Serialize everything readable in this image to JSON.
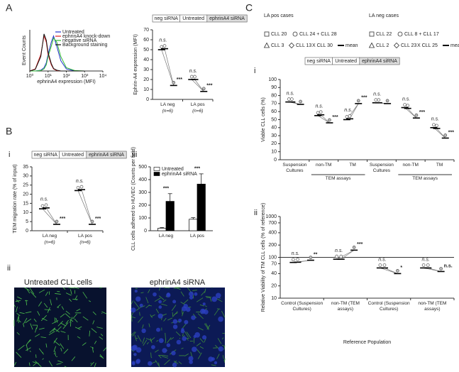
{
  "panel_labels": {
    "A": "A",
    "B": "B",
    "C": "C",
    "B_i": "i",
    "B_ii": "ii",
    "B_iii": "iii",
    "C_i": "i",
    "C_ii": "ii"
  },
  "image_captions": [
    "Untreated CLL cells",
    "ephrinA4 siRNA"
  ],
  "case_legends": [
    {
      "title": "LA pos cases",
      "cases": [
        "CLL 20",
        "CLL 24 + CLL 28",
        "CLL 3",
        "CLL 13",
        "X CLL 30",
        "mean"
      ]
    },
    {
      "title": "LA neg cases",
      "cases": [
        "CLL 22",
        "CLL 8 + CLL 17",
        "CLL 2",
        "CLL 23",
        "X CLL 25",
        "mean"
      ]
    }
  ],
  "chart_data": [
    {
      "type": "line",
      "x_label": "ephrinA4 expression (MFI)",
      "y_label": "Event Counts",
      "log_x": true,
      "x": [
        1,
        2,
        4,
        6,
        8,
        10,
        15,
        20,
        30,
        50,
        100,
        300,
        1000
      ],
      "xlim": [
        1,
        10000
      ],
      "xticks": [
        {
          "value": 1,
          "label": "10⁰"
        },
        {
          "value": 10,
          "label": "10¹"
        },
        {
          "value": 100,
          "label": "10²"
        },
        {
          "value": 1000,
          "label": "10³"
        },
        {
          "value": 10000,
          "label": "10⁴"
        }
      ],
      "ylim": [
        0,
        100
      ],
      "series": [
        {
          "name": "Untreated",
          "color": "#2233cc",
          "values": [
            0,
            0,
            2,
            8,
            20,
            40,
            70,
            85,
            60,
            25,
            5,
            0,
            0
          ]
        },
        {
          "name": "ephrinA4 knock-down",
          "color": "#dd2222",
          "values": [
            0,
            5,
            40,
            85,
            70,
            40,
            15,
            5,
            1,
            0,
            0,
            0,
            0
          ]
        },
        {
          "name": "negative siRNA",
          "color": "#33bb33",
          "values": [
            0,
            0,
            1,
            5,
            15,
            35,
            60,
            80,
            70,
            35,
            8,
            1,
            0
          ]
        },
        {
          "name": "Background staining",
          "color": "#111111",
          "values": [
            0,
            4,
            35,
            90,
            75,
            45,
            18,
            6,
            2,
            0,
            0,
            0,
            0
          ]
        }
      ]
    },
    {
      "type": "dot",
      "y_label": "Ephrin-A4 expression (MFI)",
      "categories": [
        "LA neg",
        "LA pos"
      ],
      "category_notes": [
        "(n=6)",
        "(n=6)"
      ],
      "ylim": [
        0,
        70
      ],
      "yticks": [
        0,
        10,
        20,
        30,
        40,
        50,
        60,
        70
      ],
      "series": [
        {
          "name": "neg siRNA",
          "color": "#ffffff",
          "values": [
            50,
            20
          ]
        },
        {
          "name": "Untreated",
          "color": "#ffffff",
          "values": [
            51,
            20
          ]
        },
        {
          "name": "ephrinA4 siRNA",
          "color": "#bbbbbb",
          "values": [
            14,
            8
          ]
        }
      ],
      "annotations": [
        [
          "n.s.",
          "***"
        ],
        [
          "n.s.",
          "***"
        ]
      ]
    },
    {
      "type": "dot",
      "y_label": "TEM migration rate (% of input)",
      "categories": [
        "LA neg",
        "LA pos"
      ],
      "category_notes": [
        "(n=6)",
        "(n=6)"
      ],
      "ylim": [
        0,
        35
      ],
      "yticks": [
        0,
        5,
        10,
        15,
        20,
        25,
        30,
        35
      ],
      "series": [
        {
          "name": "neg siRNA",
          "color": "#ffffff",
          "values": [
            12,
            22
          ]
        },
        {
          "name": "Untreated",
          "color": "#ffffff",
          "values": [
            12.5,
            22.5
          ]
        },
        {
          "name": "ephrinA4 siRNA",
          "color": "#bbbbbb",
          "values": [
            3.5,
            3.5
          ]
        }
      ],
      "annotations": [
        [
          "n.s.",
          "***"
        ],
        [
          "n.s.",
          "***"
        ]
      ]
    },
    {
      "type": "bar",
      "y_label": "CLL cells adhered to HUVEC (Counts per field)",
      "categories": [
        "LA neg",
        "LA pos"
      ],
      "ylim": [
        0,
        500
      ],
      "yticks": [
        0,
        100,
        200,
        300,
        400,
        500
      ],
      "series": [
        {
          "name": "Untreated",
          "color": "#ffffff",
          "values": [
            20,
            90
          ],
          "errors": [
            5,
            12
          ]
        },
        {
          "name": "ephrinA4 siRNA",
          "color": "#000000",
          "values": [
            230,
            365
          ],
          "errors": [
            60,
            80
          ]
        }
      ],
      "annotations": [
        "***",
        "***"
      ]
    },
    {
      "type": "dot",
      "y_label": "Viable CLL cells (%)",
      "categories": [
        "Suspension Cultures",
        "non-TM",
        "TM",
        "Suspension Cultures",
        "non-TM",
        "TM"
      ],
      "group_labels": [
        "TEM assays",
        "TEM assays"
      ],
      "ylim": [
        0,
        100
      ],
      "yticks": [
        0,
        10,
        20,
        30,
        40,
        50,
        60,
        70,
        80,
        90,
        100
      ],
      "series": [
        {
          "name": "neg siRNA",
          "color": "#ffffff",
          "values": [
            72,
            55,
            50,
            71,
            65,
            40
          ]
        },
        {
          "name": "Untreated",
          "color": "#ffffff",
          "values": [
            72,
            56,
            51,
            71,
            64,
            39
          ]
        },
        {
          "name": "ephrinA4 siRNA",
          "color": "#bbbbbb",
          "values": [
            69,
            46,
            70,
            70,
            52,
            27
          ]
        }
      ],
      "annotations": [
        [
          "n.s."
        ],
        [
          "n.s.",
          "***"
        ],
        [
          "n.s.",
          "***"
        ],
        [
          "n.s."
        ],
        [
          "n.s.",
          "***"
        ],
        [
          "n.s.",
          "***"
        ]
      ]
    },
    {
      "type": "dot",
      "log": true,
      "y_label": "Relative Viability of TM CLL cells (% of reference)",
      "x_label": "Reference Population",
      "categories": [
        "Control (Suspension Cultures)",
        "non-TM (TEM assays)",
        "Control (Suspension Cultures)",
        "non-TM (TEM assays)"
      ],
      "ylim": [
        10,
        1000
      ],
      "yticks": [
        10,
        20,
        40,
        70,
        100,
        200,
        400,
        700,
        1000
      ],
      "reference_line": 100,
      "series": [
        {
          "color": "#ffffff",
          "values": [
            75,
            90,
            55,
            55
          ]
        },
        {
          "color": "#ffffff",
          "values": [
            76,
            90,
            55,
            55
          ]
        },
        {
          "color": "#bbbbbb",
          "values": [
            85,
            150,
            40,
            45
          ]
        }
      ],
      "annotations": [
        [
          "n.s.",
          "**"
        ],
        [
          "n.s.",
          "***"
        ],
        [
          "n.s.",
          "*"
        ],
        [
          "n.s.",
          "n.s."
        ]
      ]
    }
  ]
}
